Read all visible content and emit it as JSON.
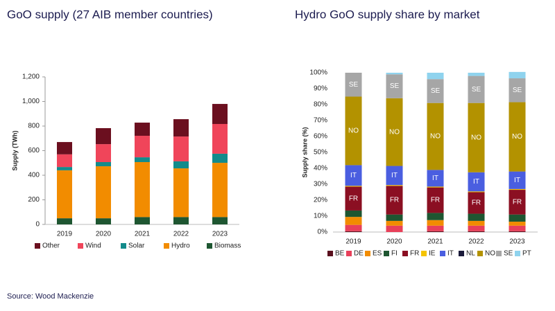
{
  "chart_data": [
    {
      "type": "bar",
      "stacked": true,
      "title": "GoO supply (27 AIB member countries)",
      "y_label": "Supply (TWh)",
      "categories": [
        "2019",
        "2020",
        "2021",
        "2022",
        "2023"
      ],
      "series": [
        {
          "name": "Biomass",
          "color": "#1e5631",
          "values": [
            50,
            50,
            60,
            60,
            60
          ]
        },
        {
          "name": "Hydro",
          "color": "#f28c00",
          "values": [
            390,
            423,
            447,
            396,
            441
          ]
        },
        {
          "name": "Solar",
          "color": "#138b8b",
          "values": [
            27,
            34,
            39,
            57,
            74
          ]
        },
        {
          "name": "Wind",
          "color": "#f0455a",
          "values": [
            103,
            146,
            175,
            202,
            242
          ]
        },
        {
          "name": "Other",
          "color": "#6b0f1f",
          "values": [
            100,
            130,
            107,
            141,
            163
          ]
        }
      ],
      "ylim": [
        0,
        1200
      ],
      "yticks": [
        0,
        200,
        400,
        600,
        800,
        {
          "value": 1000,
          "label": "1,000"
        },
        {
          "value": 1200,
          "label": "1,200"
        }
      ],
      "legend": "bottom",
      "legend_order": "reverse"
    },
    {
      "type": "bar",
      "stacked": true,
      "title": "Hydro GoO supply share by market",
      "y_label": "Supply share (%)",
      "categories": [
        "2019",
        "2020",
        "2021",
        "2022",
        "2023"
      ],
      "series": [
        {
          "name": "BE",
          "color": "#5a0f1e",
          "values": [
            0.5,
            0,
            0.5,
            0.5,
            0.5
          ]
        },
        {
          "name": "DE",
          "color": "#e8405a",
          "values": [
            4,
            4,
            3.5,
            3.5,
            3.5
          ]
        },
        {
          "name": "ES",
          "color": "#f28c00",
          "values": [
            5,
            3,
            3.5,
            3,
            2.5
          ]
        },
        {
          "name": "FI",
          "color": "#1e5631",
          "values": [
            4,
            4,
            4.5,
            4.5,
            4.5
          ]
        },
        {
          "name": "FR",
          "color": "#8b0f22",
          "values": [
            15,
            18,
            16,
            13.5,
            15.5
          ],
          "inside_label": true
        },
        {
          "name": "IE",
          "color": "#f5c400",
          "values": [
            0.5,
            0.5,
            0.5,
            0.5,
            0.5
          ]
        },
        {
          "name": "IT",
          "color": "#4a5ee0",
          "values": [
            13,
            12,
            10.5,
            12,
            11
          ],
          "inside_label": true
        },
        {
          "name": "NL",
          "color": "#1a1a3a",
          "values": [
            0,
            0,
            0,
            0,
            0
          ]
        },
        {
          "name": "NO",
          "color": "#b39200",
          "values": [
            43,
            42.5,
            42,
            43.5,
            43.5
          ],
          "inside_label": true
        },
        {
          "name": "SE",
          "color": "#a6a6a6",
          "values": [
            15,
            15,
            15,
            17,
            15
          ],
          "inside_label": true
        },
        {
          "name": "PT",
          "color": "#8fd3ee",
          "values": [
            0,
            1,
            4,
            2,
            4
          ]
        }
      ],
      "ylim": [
        0,
        100
      ],
      "yticks": [
        {
          "value": 0,
          "label": "0%"
        },
        {
          "value": 10,
          "label": "10%"
        },
        {
          "value": 20,
          "label": "20%"
        },
        {
          "value": 30,
          "label": "30%"
        },
        {
          "value": 40,
          "label": "40%"
        },
        {
          "value": 50,
          "label": "50%"
        },
        {
          "value": 60,
          "label": "60%"
        },
        {
          "value": 70,
          "label": "70%"
        },
        {
          "value": 80,
          "label": "80%"
        },
        {
          "value": 90,
          "label": "90%"
        },
        {
          "value": 100,
          "label": "100%"
        }
      ],
      "legend": "bottom",
      "legend_order": "normal"
    }
  ],
  "source": "Source: Wood Mackenzie"
}
